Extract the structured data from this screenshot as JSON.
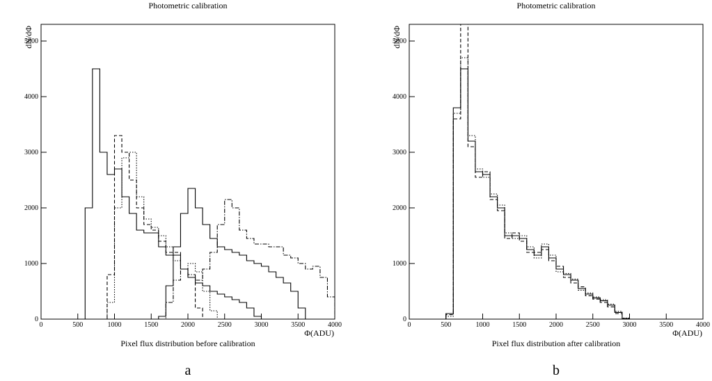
{
  "chart_data": [
    {
      "type": "histogram",
      "title": "Photometric calibration",
      "ylabel": "dN/dΦ",
      "xlabel": "Φ(ADU)",
      "note": "Pixel flux distribution before calibration",
      "caption": "a",
      "bins": [
        0,
        100,
        200,
        300,
        400,
        500,
        600,
        700,
        800,
        900,
        1000,
        1100,
        1200,
        1300,
        1400,
        1500,
        1600,
        1700,
        1800,
        1900,
        2000,
        2100,
        2200,
        2300,
        2400,
        2500,
        2600,
        2700,
        2800,
        2900,
        3000,
        3100,
        3200,
        3300,
        3400,
        3500,
        3600,
        3700,
        3800,
        3900,
        4000
      ],
      "series": [
        {
          "color": "#000000",
          "style": "solid",
          "values": [
            0,
            0,
            0,
            0,
            0,
            0,
            2000,
            4500,
            3000,
            2600,
            2700,
            2200,
            1900,
            1600,
            1550,
            1550,
            1300,
            1150,
            1150,
            900,
            750,
            650,
            600,
            500,
            450,
            400,
            350,
            300,
            200,
            50,
            0,
            0,
            0,
            0,
            0,
            0,
            0,
            0,
            0,
            0
          ]
        },
        {
          "color": "#000000",
          "style": "dashed",
          "values": [
            0,
            0,
            0,
            0,
            0,
            0,
            0,
            0,
            0,
            800,
            3300,
            3000,
            2500,
            2000,
            1700,
            1600,
            1400,
            1200,
            1200,
            900,
            750,
            200,
            0,
            0,
            0,
            0,
            0,
            0,
            0,
            0,
            0,
            0,
            0,
            0,
            0,
            0,
            0,
            0,
            0,
            0
          ]
        },
        {
          "color": "#000000",
          "style": "dotted",
          "values": [
            0,
            0,
            0,
            0,
            0,
            0,
            0,
            0,
            0,
            300,
            2000,
            2900,
            3000,
            2200,
            1800,
            1650,
            1500,
            1300,
            1050,
            900,
            1000,
            850,
            500,
            150,
            0,
            0,
            0,
            0,
            0,
            0,
            0,
            0,
            0,
            0,
            0,
            0,
            0,
            0,
            0,
            0
          ]
        },
        {
          "color": "#000000",
          "style": "solid",
          "values": [
            0,
            0,
            0,
            0,
            0,
            0,
            0,
            0,
            0,
            0,
            0,
            0,
            0,
            0,
            0,
            0,
            50,
            600,
            1300,
            1900,
            2350,
            2000,
            1700,
            1450,
            1300,
            1250,
            1200,
            1150,
            1050,
            1000,
            950,
            850,
            750,
            650,
            500,
            200,
            0,
            0,
            0,
            0
          ]
        },
        {
          "color": "#000000",
          "style": "dashdot",
          "values": [
            0,
            0,
            0,
            0,
            0,
            0,
            0,
            0,
            0,
            0,
            0,
            0,
            0,
            0,
            0,
            0,
            0,
            300,
            700,
            900,
            800,
            700,
            900,
            1200,
            1700,
            2150,
            2000,
            1600,
            1450,
            1350,
            1350,
            1300,
            1300,
            1150,
            1100,
            1000,
            900,
            950,
            750,
            400
          ]
        }
      ],
      "xlim": [
        0,
        4000
      ],
      "xticks": [
        0,
        500,
        1000,
        1500,
        2000,
        2500,
        3000,
        3500,
        4000
      ],
      "ylim": [
        0,
        5300
      ],
      "yticks": [
        0,
        1000,
        2000,
        3000,
        4000,
        5000
      ]
    },
    {
      "type": "histogram",
      "title": "Photometric calibration",
      "ylabel": "dN/dΦ",
      "xlabel": "Φ(ADU)",
      "note": "Pixel flux distribution after calibration",
      "caption": "b",
      "bins": [
        0,
        100,
        200,
        300,
        400,
        500,
        600,
        700,
        800,
        900,
        1000,
        1100,
        1200,
        1300,
        1400,
        1500,
        1600,
        1700,
        1800,
        1900,
        2000,
        2100,
        2200,
        2300,
        2400,
        2500,
        2600,
        2700,
        2800,
        2900,
        3000,
        3100,
        3200,
        3300,
        3400,
        3500,
        3600,
        3700,
        3800,
        3900,
        4000
      ],
      "series": [
        {
          "color": "#000000",
          "style": "solid",
          "values": [
            0,
            0,
            0,
            0,
            0,
            100,
            3800,
            4500,
            3200,
            2650,
            2600,
            2200,
            2000,
            1500,
            1500,
            1450,
            1250,
            1150,
            1300,
            1100,
            900,
            800,
            700,
            550,
            450,
            380,
            330,
            250,
            120,
            10,
            0,
            0,
            0,
            0,
            0,
            0,
            0,
            0,
            0,
            0
          ]
        },
        {
          "color": "#000000",
          "style": "dashed",
          "values": [
            0,
            0,
            0,
            0,
            0,
            80,
            3600,
            5500,
            3100,
            2550,
            2650,
            2150,
            1950,
            1450,
            1550,
            1400,
            1200,
            1200,
            1250,
            1050,
            950,
            750,
            650,
            580,
            420,
            360,
            300,
            220,
            100,
            5,
            0,
            0,
            0,
            0,
            0,
            0,
            0,
            0,
            0,
            0
          ]
        },
        {
          "color": "#000000",
          "style": "dotted",
          "values": [
            0,
            0,
            0,
            0,
            0,
            50,
            3700,
            4700,
            3300,
            2700,
            2550,
            2250,
            2050,
            1550,
            1450,
            1500,
            1300,
            1100,
            1350,
            1150,
            850,
            820,
            720,
            520,
            470,
            400,
            350,
            270,
            140,
            20,
            0,
            0,
            0,
            0,
            0,
            0,
            0,
            0,
            0,
            0
          ]
        }
      ],
      "xlim": [
        0,
        4000
      ],
      "xticks": [
        0,
        500,
        1000,
        1500,
        2000,
        2500,
        3000,
        3500,
        4000
      ],
      "ylim": [
        0,
        5300
      ],
      "yticks": [
        0,
        1000,
        2000,
        3000,
        4000,
        5000
      ]
    }
  ]
}
